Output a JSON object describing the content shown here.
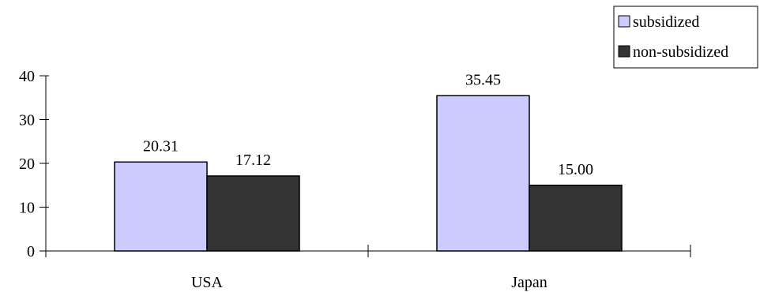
{
  "chart_data": {
    "type": "bar",
    "title": "",
    "xlabel": "",
    "ylabel": "",
    "categories": [
      "USA",
      "Japan"
    ],
    "series": [
      {
        "name": "subsidized",
        "values": [
          20.31,
          35.45
        ],
        "labels": [
          "20.31",
          "35.45"
        ],
        "color": "#ccccff"
      },
      {
        "name": "non-subsidized",
        "values": [
          17.12,
          15.0
        ],
        "labels": [
          "17.12",
          "15.00"
        ],
        "color": "#333333"
      }
    ],
    "ylim": [
      0,
      40
    ],
    "yticks": [
      0,
      10,
      20,
      30,
      40
    ],
    "grid": false,
    "legend_position": "top-right"
  }
}
